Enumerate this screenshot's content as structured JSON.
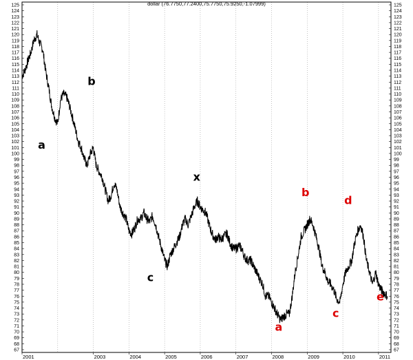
{
  "chart_data": {
    "type": "line",
    "title": "dollar (76.7750,77.2400,75.7750,75.9250,-1.07999)",
    "xlabel": "",
    "ylabel": "",
    "ylim": [
      67,
      125
    ],
    "xlim": [
      2001.0,
      2011.35
    ],
    "grid": "vertical dotted lines at each year",
    "y_ticks": [
      67,
      68,
      69,
      70,
      71,
      72,
      73,
      74,
      75,
      76,
      77,
      78,
      79,
      80,
      81,
      82,
      83,
      84,
      85,
      86,
      87,
      88,
      89,
      90,
      91,
      92,
      93,
      94,
      95,
      96,
      97,
      98,
      99,
      100,
      101,
      102,
      103,
      104,
      105,
      106,
      107,
      108,
      109,
      110,
      111,
      112,
      113,
      114,
      115,
      116,
      117,
      118,
      119,
      120,
      121,
      122,
      123,
      124,
      125
    ],
    "x_ticks": [
      {
        "label": "2001",
        "x": 2001.0
      },
      {
        "label": "2003",
        "x": 2003.0
      },
      {
        "label": "2004",
        "x": 2004.0
      },
      {
        "label": "2005",
        "x": 2005.0
      },
      {
        "label": "2006",
        "x": 2006.0
      },
      {
        "label": "2007",
        "x": 2007.0
      },
      {
        "label": "2008",
        "x": 2008.0
      },
      {
        "label": "2009",
        "x": 2009.0
      },
      {
        "label": "2010",
        "x": 2010.0
      },
      {
        "label": "2011",
        "x": 2011.0
      }
    ],
    "year_gridlines": [
      2001,
      2002,
      2003,
      2004,
      2005,
      2006,
      2007,
      2008,
      2009,
      2010,
      2011
    ],
    "series": [
      {
        "points": [
          [
            2001.0,
            113
          ],
          [
            2001.08,
            114
          ],
          [
            2001.16,
            115.5
          ],
          [
            2001.25,
            117
          ],
          [
            2001.33,
            119
          ],
          [
            2001.42,
            120
          ],
          [
            2001.5,
            118.5
          ],
          [
            2001.58,
            117.5
          ],
          [
            2001.66,
            114
          ],
          [
            2001.75,
            111
          ],
          [
            2001.83,
            108
          ],
          [
            2001.92,
            106
          ],
          [
            2002.0,
            105
          ],
          [
            2002.08,
            109
          ],
          [
            2002.16,
            110
          ],
          [
            2002.25,
            109.5
          ],
          [
            2002.33,
            108
          ],
          [
            2002.42,
            106
          ],
          [
            2002.5,
            104
          ],
          [
            2002.58,
            102
          ],
          [
            2002.66,
            101
          ],
          [
            2002.75,
            99
          ],
          [
            2002.83,
            98
          ],
          [
            2002.92,
            100
          ],
          [
            2003.0,
            101
          ],
          [
            2003.08,
            98
          ],
          [
            2003.16,
            97
          ],
          [
            2003.25,
            96
          ],
          [
            2003.33,
            94
          ],
          [
            2003.42,
            92
          ],
          [
            2003.5,
            93
          ],
          [
            2003.58,
            95
          ],
          [
            2003.66,
            94
          ],
          [
            2003.75,
            91
          ],
          [
            2003.83,
            90
          ],
          [
            2003.92,
            89
          ],
          [
            2004.0,
            87
          ],
          [
            2004.08,
            86.5
          ],
          [
            2004.16,
            87.5
          ],
          [
            2004.25,
            89
          ],
          [
            2004.33,
            89
          ],
          [
            2004.42,
            90
          ],
          [
            2004.5,
            89
          ],
          [
            2004.58,
            88.5
          ],
          [
            2004.66,
            89.5
          ],
          [
            2004.75,
            88
          ],
          [
            2004.83,
            86
          ],
          [
            2004.92,
            84
          ],
          [
            2005.0,
            82
          ],
          [
            2005.08,
            81
          ],
          [
            2005.16,
            83
          ],
          [
            2005.25,
            84
          ],
          [
            2005.33,
            85
          ],
          [
            2005.42,
            86
          ],
          [
            2005.5,
            88
          ],
          [
            2005.58,
            89
          ],
          [
            2005.66,
            88
          ],
          [
            2005.75,
            89.5
          ],
          [
            2005.83,
            91
          ],
          [
            2005.92,
            92
          ],
          [
            2006.0,
            91
          ],
          [
            2006.08,
            90.5
          ],
          [
            2006.16,
            90
          ],
          [
            2006.25,
            88
          ],
          [
            2006.33,
            86.5
          ],
          [
            2006.42,
            85.5
          ],
          [
            2006.5,
            86
          ],
          [
            2006.58,
            85.5
          ],
          [
            2006.66,
            86
          ],
          [
            2006.75,
            86.5
          ],
          [
            2006.83,
            85
          ],
          [
            2006.92,
            84
          ],
          [
            2007.0,
            84
          ],
          [
            2007.08,
            84.5
          ],
          [
            2007.16,
            84
          ],
          [
            2007.25,
            82.5
          ],
          [
            2007.33,
            82
          ],
          [
            2007.42,
            82
          ],
          [
            2007.5,
            81
          ],
          [
            2007.58,
            80
          ],
          [
            2007.66,
            79
          ],
          [
            2007.75,
            78
          ],
          [
            2007.83,
            76
          ],
          [
            2007.92,
            76
          ],
          [
            2008.0,
            75
          ],
          [
            2008.08,
            74
          ],
          [
            2008.16,
            73
          ],
          [
            2008.25,
            72
          ],
          [
            2008.33,
            72.5
          ],
          [
            2008.42,
            73
          ],
          [
            2008.5,
            73
          ],
          [
            2008.58,
            76
          ],
          [
            2008.66,
            80
          ],
          [
            2008.75,
            83
          ],
          [
            2008.83,
            86
          ],
          [
            2008.92,
            87
          ],
          [
            2009.0,
            88
          ],
          [
            2009.08,
            89
          ],
          [
            2009.16,
            88
          ],
          [
            2009.25,
            86
          ],
          [
            2009.33,
            84
          ],
          [
            2009.42,
            81
          ],
          [
            2009.5,
            80
          ],
          [
            2009.58,
            78.5
          ],
          [
            2009.66,
            78
          ],
          [
            2009.75,
            77
          ],
          [
            2009.83,
            75.5
          ],
          [
            2009.92,
            75
          ],
          [
            2010.0,
            78
          ],
          [
            2010.08,
            80
          ],
          [
            2010.16,
            81
          ],
          [
            2010.25,
            82
          ],
          [
            2010.33,
            85
          ],
          [
            2010.42,
            87
          ],
          [
            2010.5,
            88
          ],
          [
            2010.58,
            86
          ],
          [
            2010.66,
            82
          ],
          [
            2010.75,
            80
          ],
          [
            2010.83,
            78
          ],
          [
            2010.92,
            80
          ],
          [
            2011.0,
            78
          ],
          [
            2011.08,
            77
          ],
          [
            2011.16,
            76.5
          ],
          [
            2011.25,
            76
          ]
        ]
      }
    ],
    "annotations": [
      {
        "text": "a",
        "x": 2001.55,
        "y": 100.8,
        "color": "#000000"
      },
      {
        "text": "b",
        "x": 2002.95,
        "y": 111.5,
        "color": "#000000"
      },
      {
        "text": "c",
        "x": 2004.6,
        "y": 78.5,
        "color": "#000000"
      },
      {
        "text": "x",
        "x": 2005.9,
        "y": 95.4,
        "color": "#000000"
      },
      {
        "text": "a",
        "x": 2008.2,
        "y": 70.2,
        "color": "#dd0000"
      },
      {
        "text": "b",
        "x": 2008.95,
        "y": 92.8,
        "color": "#dd0000"
      },
      {
        "text": "c",
        "x": 2009.8,
        "y": 72.5,
        "color": "#dd0000"
      },
      {
        "text": "d",
        "x": 2010.15,
        "y": 91.5,
        "color": "#dd0000"
      },
      {
        "text": "e",
        "x": 2011.05,
        "y": 75.3,
        "color": "#dd0000"
      }
    ]
  }
}
